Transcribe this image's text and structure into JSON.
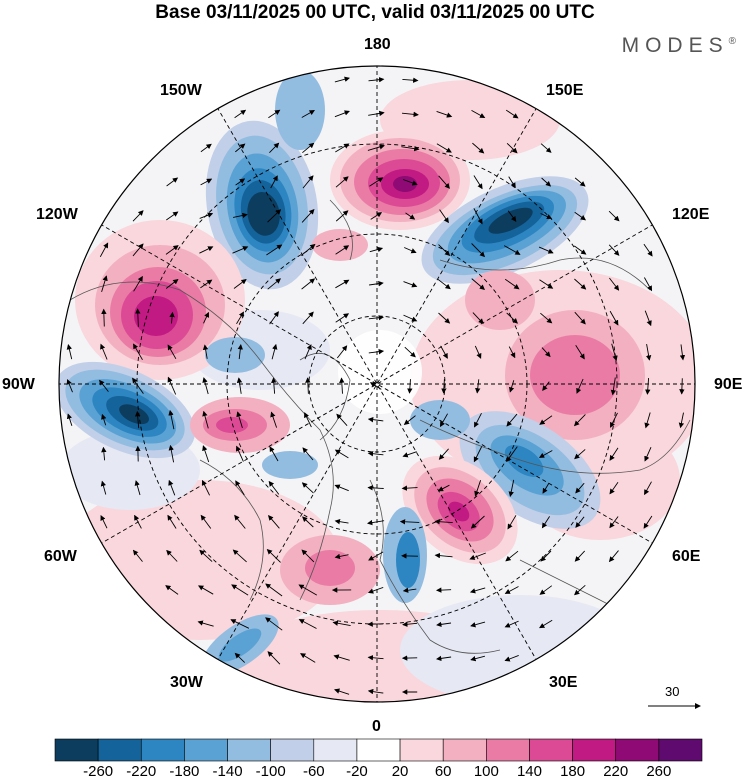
{
  "title": "Base 03/11/2025 00 UTC, valid 03/11/2025 00 UTC",
  "brand": "MODES",
  "brand_mark": "®",
  "longitude_labels": {
    "top": "180",
    "top_left": "150W",
    "top_right": "150E",
    "upper_left": "120W",
    "upper_right": "120E",
    "left": "90W",
    "right": "90E",
    "lower_left": "60W",
    "lower_right": "60E",
    "bottom_left": "30W",
    "bottom_right": "30E",
    "bottom": "0"
  },
  "reference_vector_label": "30",
  "colorbar": {
    "labels": [
      "-260",
      "-220",
      "-180",
      "-140",
      "-100",
      "-60",
      "-20",
      "20",
      "60",
      "100",
      "140",
      "180",
      "220",
      "260"
    ],
    "colors": [
      "#0c3c5e",
      "#14639a",
      "#2d86c2",
      "#5aa2d4",
      "#93bde0",
      "#c2cfe8",
      "#e6e8f4",
      "#ffffff",
      "#f9d7dc",
      "#f3b0c1",
      "#ea7ba5",
      "#dc4a96",
      "#c11a82",
      "#8f0a74",
      "#5e0a6e"
    ]
  },
  "anomalies": [
    {
      "sign": "neg",
      "strength": 4,
      "label": "150W-120W trough"
    },
    {
      "sign": "pos",
      "strength": 4,
      "label": "180 ridge"
    },
    {
      "sign": "neg",
      "strength": 4,
      "label": "120E trough"
    },
    {
      "sign": "pos",
      "strength": 3,
      "label": "105W ridge"
    },
    {
      "sign": "neg",
      "strength": 4,
      "label": "90W trough"
    },
    {
      "sign": "pos",
      "strength": 2,
      "label": "90E ridge"
    },
    {
      "sign": "neg",
      "strength": 2,
      "label": "60E trough"
    },
    {
      "sign": "pos",
      "strength": 3,
      "label": "40E ridge"
    },
    {
      "sign": "pos",
      "strength": 2,
      "label": "75W ridge"
    },
    {
      "sign": "neg",
      "strength": 2,
      "label": "10E trough"
    },
    {
      "sign": "pos",
      "strength": 2,
      "label": "20W ridge"
    },
    {
      "sign": "neg",
      "strength": 1,
      "label": "40W trough"
    }
  ]
}
